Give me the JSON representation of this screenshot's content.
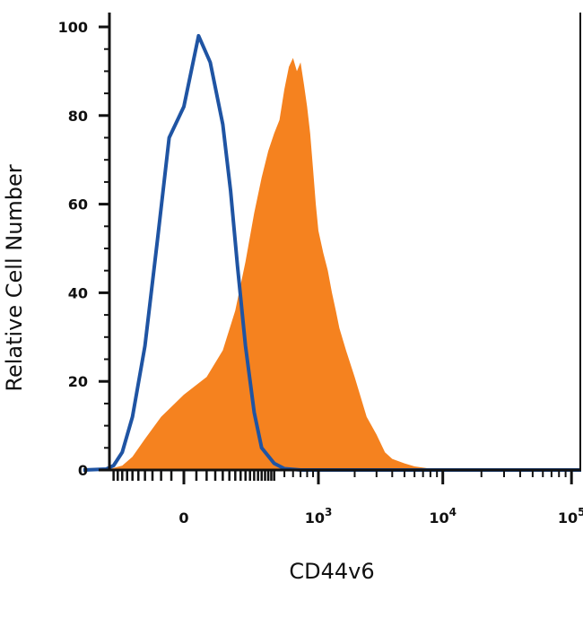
{
  "chart_data": {
    "type": "area",
    "xlabel": "CD44v6",
    "ylabel": "Relative Cell Number",
    "x_scale": "biexponential",
    "ylim": [
      0,
      100
    ],
    "grid": false,
    "y_ticks": [
      "0",
      "20",
      "40",
      "60",
      "80",
      "100"
    ],
    "y_tick_values": [
      0,
      20,
      40,
      60,
      80,
      100
    ],
    "x_ticks": [
      {
        "value": 0,
        "base": "0",
        "exp": ""
      },
      {
        "value": 1000,
        "base": "10",
        "exp": "3"
      },
      {
        "value": 10000,
        "base": "10",
        "exp": "4"
      },
      {
        "value": 100000,
        "base": "10",
        "exp": "5"
      }
    ],
    "series": [
      {
        "style": "filled",
        "color": "#f5821f",
        "x": [
          -300,
          -200,
          -150,
          -100,
          -50,
          0,
          50,
          100,
          150,
          200,
          250,
          300,
          350,
          400,
          450,
          500,
          550,
          600,
          650,
          700,
          750,
          800,
          850,
          900,
          950,
          1000,
          1100,
          1200,
          1300,
          1400,
          1500,
          1700,
          2000,
          2500,
          3000,
          3500,
          4000,
          5000,
          6000,
          8000,
          10000,
          100000,
          250000
        ],
        "y": [
          0,
          1,
          3,
          7,
          12,
          17,
          21,
          27,
          36,
          47,
          58,
          66,
          72,
          76,
          79,
          86,
          91,
          93,
          90,
          92,
          87,
          82,
          76,
          68,
          60,
          54,
          49,
          45,
          40,
          36,
          32,
          27,
          21,
          12,
          8,
          4,
          2.5,
          1.5,
          0.8,
          0.3,
          0,
          0,
          0
        ]
      },
      {
        "style": "outline",
        "color": "#1f54a3",
        "x": [
          -500,
          -300,
          -250,
          -200,
          -150,
          -100,
          -60,
          -30,
          0,
          30,
          60,
          100,
          130,
          160,
          200,
          250,
          300,
          400,
          500,
          700,
          1000,
          100000,
          250000
        ],
        "y": [
          0,
          0.2,
          1,
          4,
          12,
          28,
          52,
          75,
          82,
          98,
          92,
          78,
          63,
          46,
          28,
          13,
          5,
          1.5,
          0.3,
          0,
          0,
          0,
          0
        ]
      }
    ]
  }
}
